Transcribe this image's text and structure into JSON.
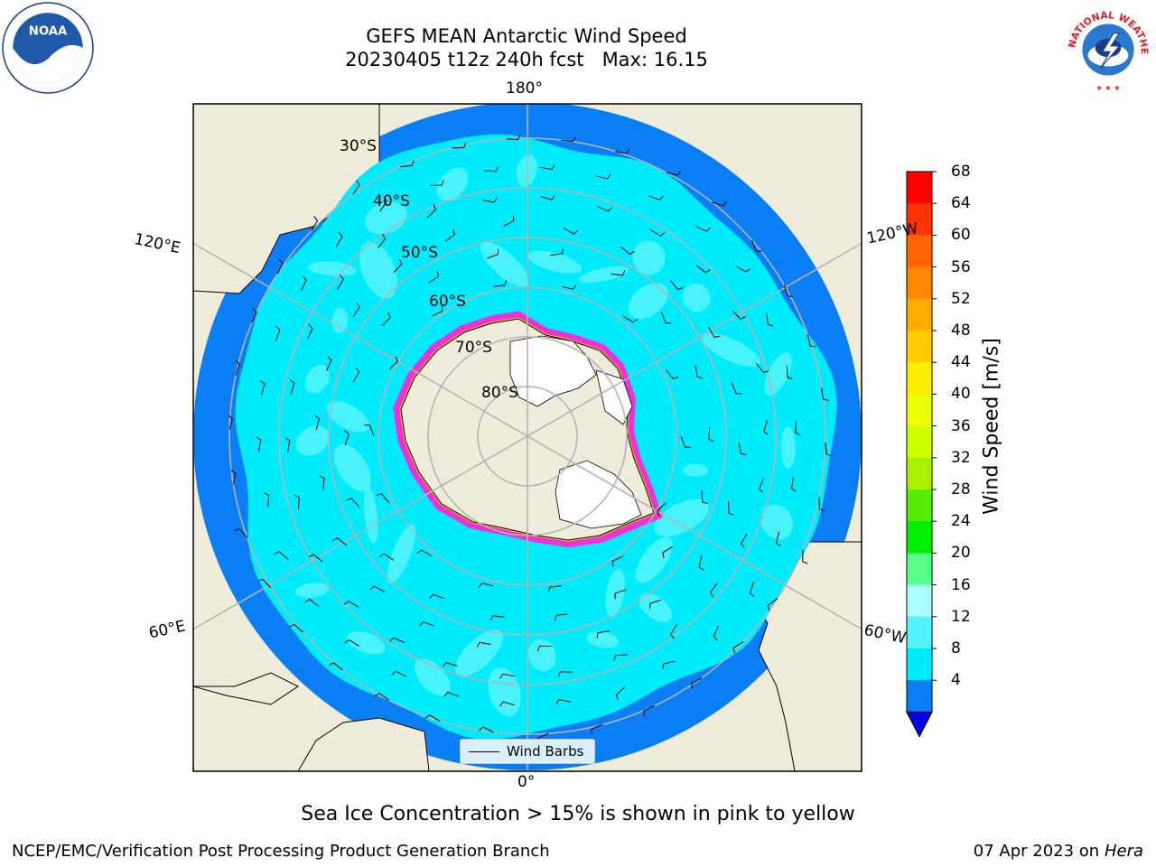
{
  "title": {
    "line1": "GEFS MEAN Antarctic Wind Speed",
    "line2": "20230405 t12z 240h fcst   Max: 16.15"
  },
  "map": {
    "projection": "south-polar-stereographic",
    "longitude_labels": {
      "top": "180°",
      "bottom": "0°",
      "upper_left": "120°E",
      "upper_right": "120°W",
      "lower_left": "60°E",
      "lower_right": "60°W"
    },
    "latitude_labels": [
      "30°S",
      "40°S",
      "50°S",
      "60°S",
      "70°S",
      "80°S"
    ],
    "colors": {
      "land": "#efecdc",
      "ocean_4_8": "#0a7ff5",
      "ocean_8_12": "#00ecfc",
      "ocean_12_16": "#55f4fc",
      "ice_shelf": "#ffffff",
      "sea_ice_edge": "#f030d8",
      "sea_ice_inner": "#ffc800",
      "grid": "#b4b4b4"
    }
  },
  "legend": {
    "wind_barbs_label": "Wind Barbs"
  },
  "colorbar": {
    "label": "Wind Speed [m/s]",
    "ticks": [
      "68",
      "64",
      "60",
      "56",
      "52",
      "48",
      "44",
      "40",
      "36",
      "32",
      "28",
      "24",
      "20",
      "16",
      "12",
      "8",
      "4"
    ],
    "colors": [
      "#ff0000",
      "#ff3300",
      "#ff6600",
      "#ff8800",
      "#ffaa00",
      "#ffcc00",
      "#ffee00",
      "#eeff00",
      "#ccff00",
      "#aaee00",
      "#55ee00",
      "#00ee00",
      "#55ff88",
      "#aaffff",
      "#55f4fc",
      "#00ecfc",
      "#0a7ff5"
    ],
    "extend_color": "#0000ee"
  },
  "caption": "Sea Ice Concentration > 15% is shown in pink to yellow",
  "footer": {
    "left": "NCEP/EMC/Verification Post Processing Product Generation Branch",
    "date": "07 Apr 2023 on ",
    "machine": "Hera"
  },
  "logos": {
    "noaa_text": "NOAA",
    "nws_text": "NATIONAL WEATHER SERVICE"
  }
}
